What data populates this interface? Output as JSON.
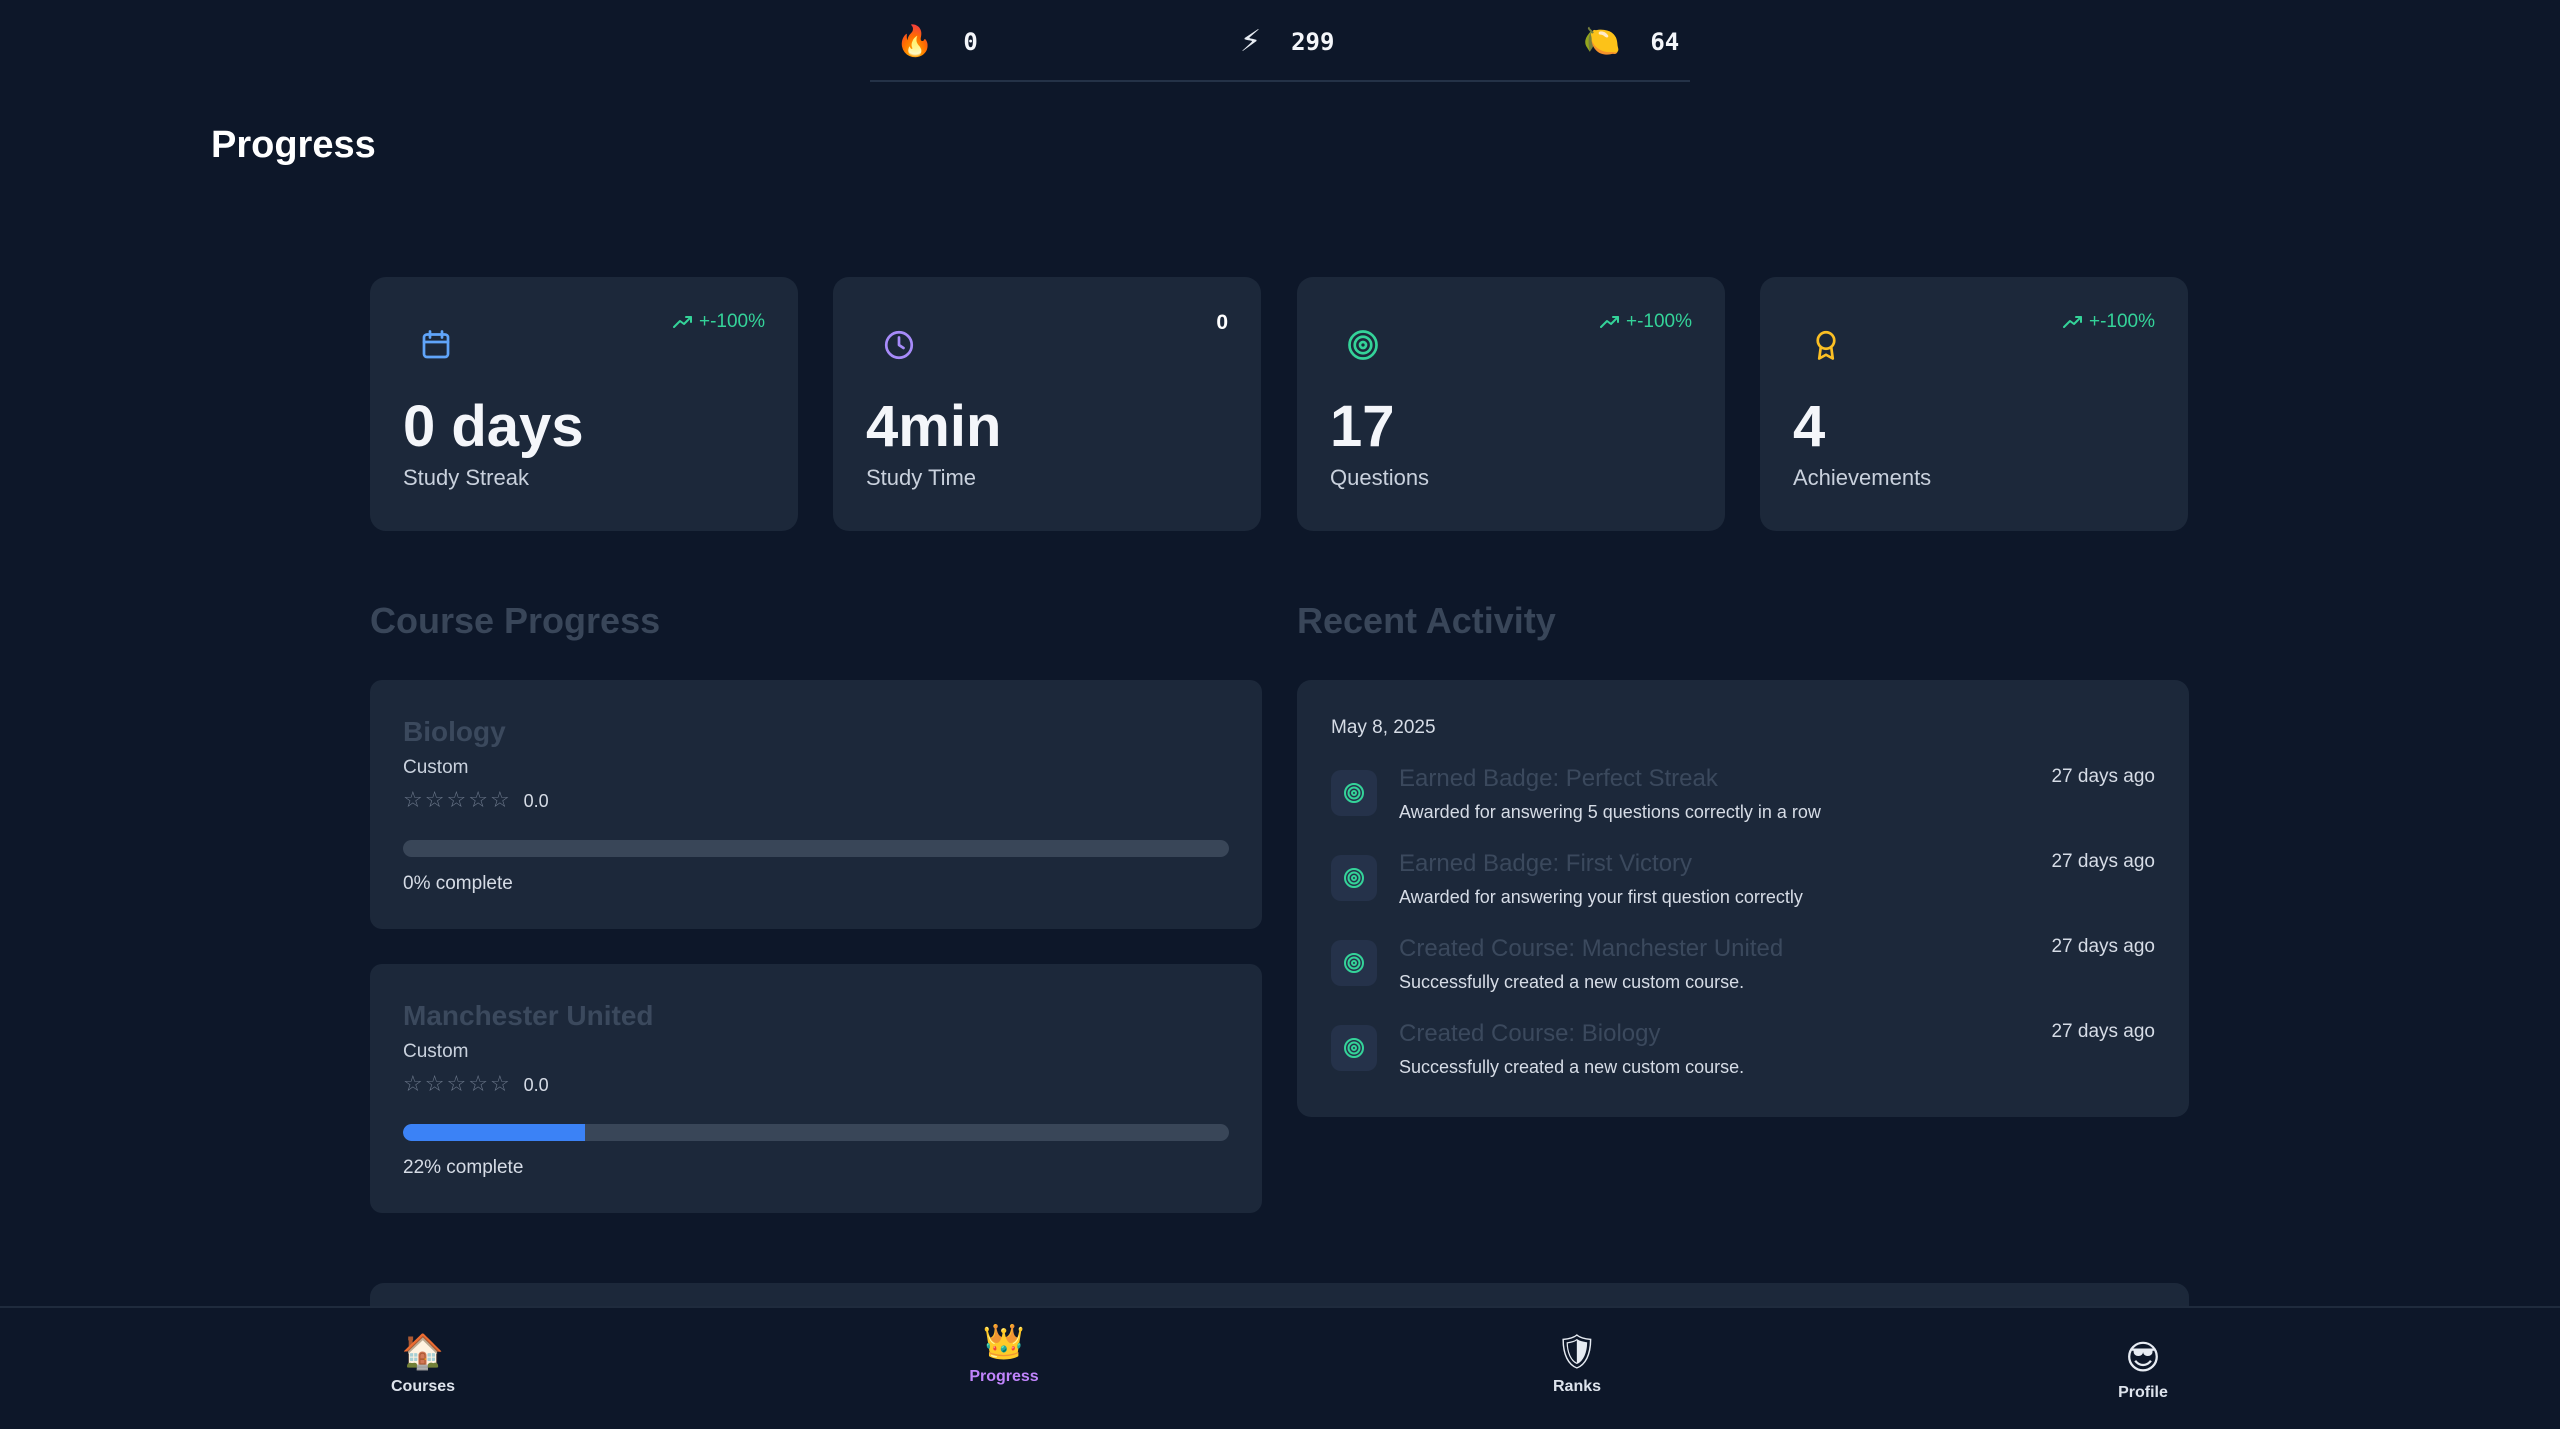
{
  "topbar": {
    "streak": {
      "icon": "fire-icon",
      "glyph": "🔥",
      "value": "0"
    },
    "bolts": {
      "icon": "lightning-icon",
      "glyph": "⚡",
      "value": "299"
    },
    "gems": {
      "icon": "orb-icon",
      "glyph": "🍋",
      "value": "64"
    }
  },
  "page": {
    "title": "Progress"
  },
  "stats": [
    {
      "icon": "calendar-icon",
      "trend": "+-100%",
      "value": "0 days",
      "label": "Study Streak"
    },
    {
      "icon": "clock-icon",
      "trend": "0",
      "value": "4min",
      "label": "Study Time"
    },
    {
      "icon": "target-icon",
      "trend": "+-100%",
      "value": "17",
      "label": "Questions"
    },
    {
      "icon": "award-icon",
      "trend": "+-100%",
      "value": "4",
      "label": "Achievements"
    }
  ],
  "course_progress": {
    "title": "Course Progress",
    "courses": [
      {
        "name": "Biology",
        "type": "Custom",
        "rating": "0.0",
        "progress": 0,
        "progress_label": "0% complete"
      },
      {
        "name": "Manchester United",
        "type": "Custom",
        "rating": "0.0",
        "progress": 0.22,
        "progress_label": "22% complete"
      }
    ]
  },
  "recent_activity": {
    "title": "Recent Activity",
    "date": "May 8, 2025",
    "items": [
      {
        "title": "Earned Badge: Perfect Streak",
        "desc": "Awarded for answering 5 questions correctly in a row",
        "time": "27 days ago"
      },
      {
        "title": "Earned Badge: First Victory",
        "desc": "Awarded for answering your first question correctly",
        "time": "27 days ago"
      },
      {
        "title": "Created Course: Manchester United",
        "desc": "Successfully created a new custom course.",
        "time": "27 days ago"
      },
      {
        "title": "Created Course: Biology",
        "desc": "Successfully created a new custom course.",
        "time": "27 days ago"
      }
    ]
  },
  "colors": {
    "background": "#0d1729",
    "card": "#1c283a",
    "accent_green": "#34d399",
    "progress_blue": "#3b82f6",
    "nav_active": "#c084fc"
  },
  "nav": [
    {
      "label": "Courses",
      "icon": "house-icon",
      "glyph": "🏠",
      "active": false
    },
    {
      "label": "Progress",
      "icon": "crown-icon",
      "glyph": "👑",
      "active": true
    },
    {
      "label": "Ranks",
      "icon": "shield-icon",
      "glyph": "🛡",
      "active": false
    },
    {
      "label": "Profile",
      "icon": "sunglasses-face-icon",
      "glyph": "😎",
      "active": false
    }
  ]
}
